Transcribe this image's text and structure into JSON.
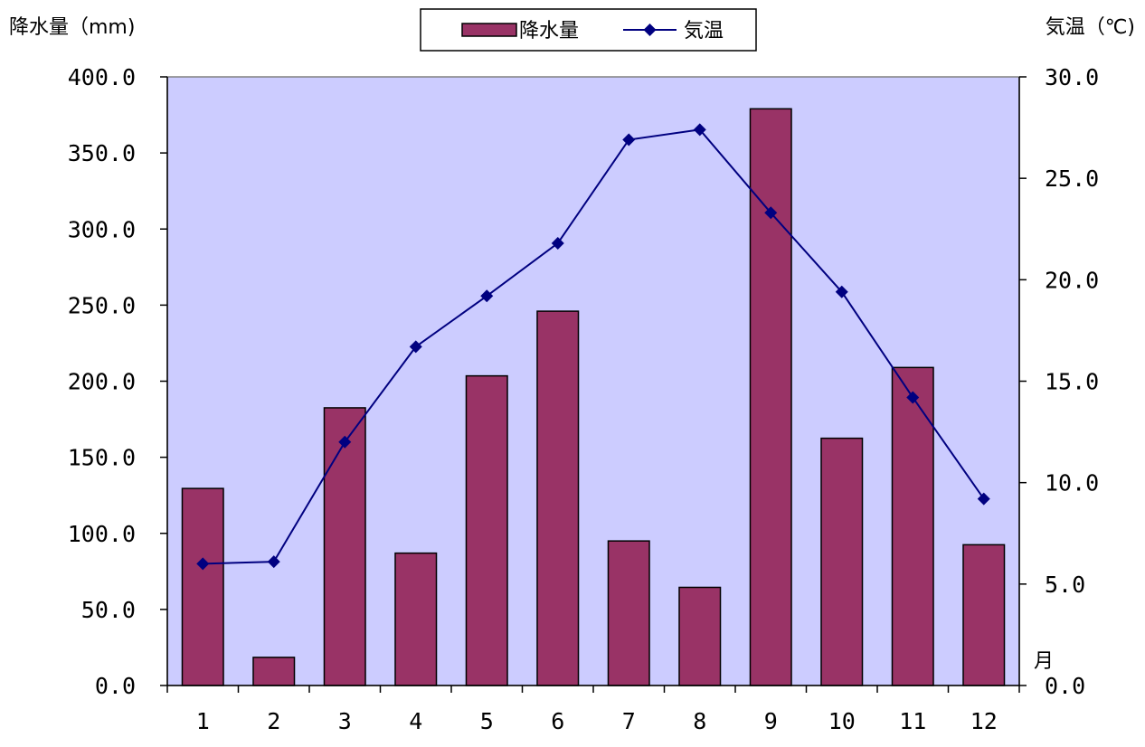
{
  "chart_data": {
    "type": "bar",
    "categories": [
      "1",
      "2",
      "3",
      "4",
      "5",
      "6",
      "7",
      "8",
      "9",
      "10",
      "11",
      "12"
    ],
    "series": [
      {
        "name": "降水量",
        "type": "bar",
        "axis": "left",
        "color": "#993366",
        "values": [
          129.5,
          18.5,
          182.5,
          87.0,
          203.5,
          246.0,
          95.0,
          64.5,
          379.0,
          162.5,
          209.0,
          92.5
        ]
      },
      {
        "name": "気温",
        "type": "line",
        "axis": "right",
        "color": "#000080",
        "values": [
          6.0,
          6.1,
          12.0,
          16.7,
          19.2,
          21.8,
          26.9,
          27.4,
          23.3,
          19.4,
          14.2,
          9.2
        ]
      }
    ],
    "ylabel": "降水量（mm)",
    "y2label": "気温（℃)",
    "xlabel": "月",
    "ylim": [
      0,
      400
    ],
    "y2lim": [
      0,
      30
    ],
    "yticks": [
      "0.0",
      "50.0",
      "100.0",
      "150.0",
      "200.0",
      "250.0",
      "300.0",
      "350.0",
      "400.0"
    ],
    "y2ticks": [
      "0.0",
      "5.0",
      "10.0",
      "15.0",
      "20.0",
      "25.0",
      "30.0"
    ],
    "plot_background": "#ccccff",
    "grid": false,
    "legend_position": "top-center"
  }
}
